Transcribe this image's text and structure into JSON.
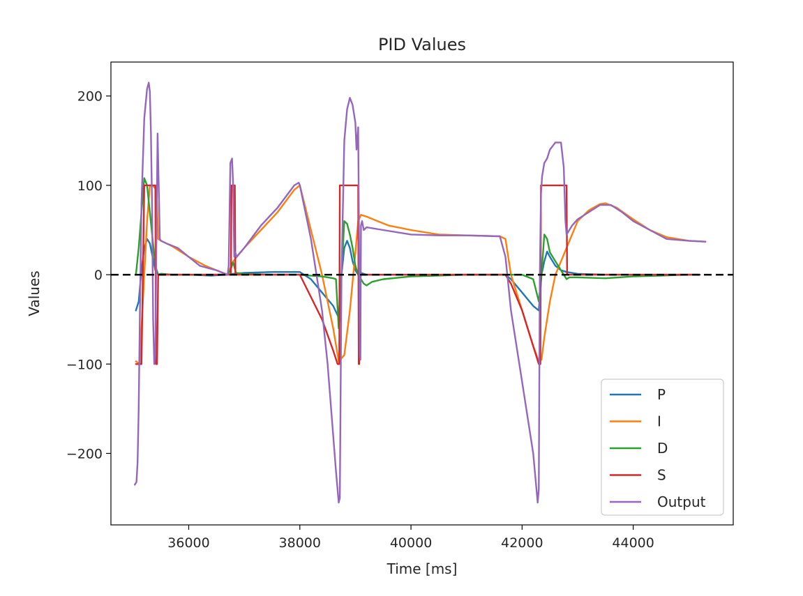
{
  "chart_data": {
    "type": "line",
    "title": "PID Values",
    "xlabel": "Time [ms]",
    "ylabel": "Values",
    "xlim": [
      34600,
      45800
    ],
    "ylim": [
      -280,
      238
    ],
    "xticks": [
      36000,
      38000,
      40000,
      42000,
      44000
    ],
    "xtick_labels": [
      "36000",
      "38000",
      "40000",
      "42000",
      "44000"
    ],
    "yticks": [
      200,
      100,
      0,
      -100,
      -200
    ],
    "ytick_labels": [
      "200",
      "100",
      "0",
      "−100",
      "−200"
    ],
    "grid": false,
    "legend_position": "lower-right",
    "reference_line": {
      "y": 0,
      "style": "dashed",
      "color": "#000000"
    },
    "series": [
      {
        "name": "P",
        "color": "#1f77b4",
        "x": [
          35050,
          35100,
          35150,
          35200,
          35250,
          35300,
          35350,
          35400,
          35450,
          35500,
          35700,
          36000,
          36400,
          36700,
          36800,
          37000,
          37500,
          37900,
          38000,
          38200,
          38400,
          38600,
          38700,
          38750,
          38800,
          38850,
          38900,
          38950,
          39000,
          39050,
          39100,
          39200,
          39500,
          40000,
          41000,
          41600,
          41700,
          41800,
          42000,
          42200,
          42300,
          42350,
          42400,
          42450,
          42500,
          42600,
          42700,
          42800,
          43000,
          43500,
          44000,
          45000,
          45200
        ],
        "y": [
          -40,
          -30,
          5,
          30,
          40,
          35,
          20,
          5,
          0,
          1,
          0,
          0,
          -1,
          0,
          1,
          2,
          3,
          3,
          3,
          -5,
          -20,
          -35,
          -48,
          0,
          30,
          38,
          30,
          15,
          5,
          0,
          2,
          0,
          0,
          0,
          0,
          0,
          0,
          -5,
          -20,
          -35,
          -40,
          0,
          15,
          26,
          20,
          10,
          5,
          3,
          1,
          0,
          0,
          0,
          0
        ]
      },
      {
        "name": "I",
        "color": "#ff7f0e",
        "x": [
          35050,
          35120,
          35150,
          35200,
          35250,
          35300,
          35350,
          35420,
          35450,
          35500,
          35700,
          36000,
          36300,
          36700,
          36800,
          37000,
          37300,
          37600,
          37900,
          38000,
          38200,
          38400,
          38600,
          38700,
          38800,
          38900,
          39000,
          39050,
          39100,
          39200,
          39400,
          39600,
          40000,
          40500,
          41000,
          41600,
          41700,
          41800,
          42000,
          42200,
          42300,
          42350,
          42400,
          42500,
          42600,
          42700,
          42800,
          42900,
          43000,
          43200,
          43400,
          43500,
          43700,
          44000,
          44300,
          44600,
          45000,
          45300
        ],
        "y": [
          -97,
          -100,
          -60,
          0,
          60,
          100,
          100,
          95,
          40,
          38,
          32,
          20,
          10,
          0,
          15,
          30,
          50,
          70,
          95,
          100,
          50,
          0,
          -60,
          -97,
          -90,
          -40,
          25,
          60,
          67,
          65,
          60,
          55,
          50,
          45,
          44,
          43,
          40,
          0,
          -40,
          -80,
          -97,
          -95,
          -70,
          -30,
          0,
          15,
          30,
          45,
          60,
          72,
          79,
          80,
          75,
          62,
          50,
          42,
          38,
          37
        ]
      },
      {
        "name": "D",
        "color": "#2ca02c",
        "x": [
          35050,
          35100,
          35150,
          35200,
          35250,
          35300,
          35350,
          35400,
          35450,
          35500,
          35700,
          36000,
          36700,
          36750,
          36800,
          36850,
          37000,
          37500,
          37900,
          38000,
          38200,
          38400,
          38600,
          38650,
          38700,
          38720,
          38750,
          38800,
          38850,
          38900,
          38950,
          39000,
          39050,
          39100,
          39150,
          39200,
          39300,
          39500,
          40000,
          41000,
          41600,
          41700,
          41800,
          42000,
          42200,
          42280,
          42300,
          42350,
          42400,
          42450,
          42500,
          42600,
          42700,
          42800,
          42850,
          43000,
          43500,
          44000,
          44500,
          45000,
          45200
        ],
        "y": [
          0,
          30,
          70,
          108,
          100,
          70,
          40,
          10,
          0,
          1,
          0,
          0,
          0,
          5,
          14,
          2,
          1,
          0,
          0,
          0,
          -1,
          -2,
          -4,
          -5,
          -60,
          -50,
          0,
          60,
          57,
          45,
          30,
          10,
          0,
          -5,
          -10,
          -12,
          -8,
          -5,
          -2,
          0,
          0,
          0,
          0,
          0,
          -5,
          -25,
          -30,
          0,
          45,
          40,
          25,
          15,
          5,
          -5,
          -3,
          -3,
          -4,
          -2,
          -1,
          0,
          0
        ]
      },
      {
        "name": "S",
        "color": "#d62728",
        "x": [
          35050,
          35120,
          35150,
          35200,
          35280,
          35300,
          35350,
          35400,
          35410,
          35420,
          35430,
          35450,
          35500,
          35700,
          36000,
          36700,
          36760,
          36770,
          36830,
          36840,
          37000,
          37500,
          37950,
          38000,
          38200,
          38400,
          38600,
          38680,
          38700,
          38710,
          38720,
          39000,
          39010,
          39050,
          39060,
          39070,
          39080,
          39100,
          39500,
          40000,
          41000,
          41600,
          41650,
          41700,
          41800,
          42000,
          42200,
          42300,
          42320,
          42330,
          42340,
          42800,
          42810,
          43000,
          44000,
          45000,
          45200
        ],
        "y": [
          -100,
          -100,
          -100,
          100,
          100,
          100,
          100,
          100,
          -100,
          -100,
          -100,
          0,
          0,
          0,
          0,
          0,
          0,
          100,
          100,
          0,
          0,
          0,
          0,
          0,
          -25,
          -50,
          -85,
          -100,
          -100,
          -100,
          100,
          100,
          100,
          100,
          -100,
          -100,
          0,
          0,
          0,
          0,
          0,
          0,
          0,
          0,
          -10,
          -40,
          -80,
          -100,
          -100,
          -100,
          100,
          100,
          0,
          0,
          0,
          0,
          0
        ]
      },
      {
        "name": "Output",
        "color": "#9467bd",
        "x": [
          35030,
          35060,
          35080,
          35100,
          35120,
          35150,
          35200,
          35250,
          35280,
          35300,
          35320,
          35340,
          35360,
          35380,
          35400,
          35420,
          35440,
          35460,
          35480,
          35500,
          35600,
          35800,
          36000,
          36200,
          36500,
          36700,
          36720,
          36750,
          36780,
          36800,
          36820,
          36840,
          36860,
          37000,
          37300,
          37600,
          37900,
          37980,
          38000,
          38200,
          38400,
          38500,
          38600,
          38650,
          38700,
          38720,
          38750,
          38800,
          38850,
          38900,
          38950,
          39000,
          39020,
          39050,
          39070,
          39080,
          39090,
          39100,
          39120,
          39150,
          39200,
          39500,
          40000,
          40500,
          41000,
          41600,
          41700,
          41800,
          42000,
          42200,
          42280,
          42300,
          42320,
          42340,
          42360,
          42400,
          42450,
          42500,
          42600,
          42700,
          42750,
          42780,
          42800,
          42850,
          42900,
          43000,
          43200,
          43400,
          43600,
          43800,
          44000,
          44300,
          44600,
          45000,
          45300
        ],
        "y": [
          -235,
          -232,
          -210,
          -150,
          -50,
          80,
          175,
          208,
          215,
          205,
          160,
          80,
          -50,
          -100,
          -90,
          50,
          158,
          100,
          40,
          38,
          35,
          30,
          20,
          10,
          5,
          0,
          10,
          125,
          130,
          100,
          20,
          25,
          20,
          30,
          55,
          75,
          100,
          103,
          100,
          40,
          -40,
          -100,
          -180,
          -220,
          -255,
          -250,
          0,
          150,
          185,
          198,
          190,
          170,
          140,
          165,
          0,
          -90,
          -95,
          55,
          60,
          50,
          53,
          50,
          45,
          44,
          44,
          43,
          20,
          -40,
          -120,
          -200,
          -255,
          -240,
          0,
          90,
          110,
          125,
          130,
          140,
          148,
          148,
          120,
          60,
          45,
          50,
          55,
          62,
          70,
          78,
          78,
          70,
          60,
          50,
          40,
          38,
          37
        ]
      }
    ]
  }
}
